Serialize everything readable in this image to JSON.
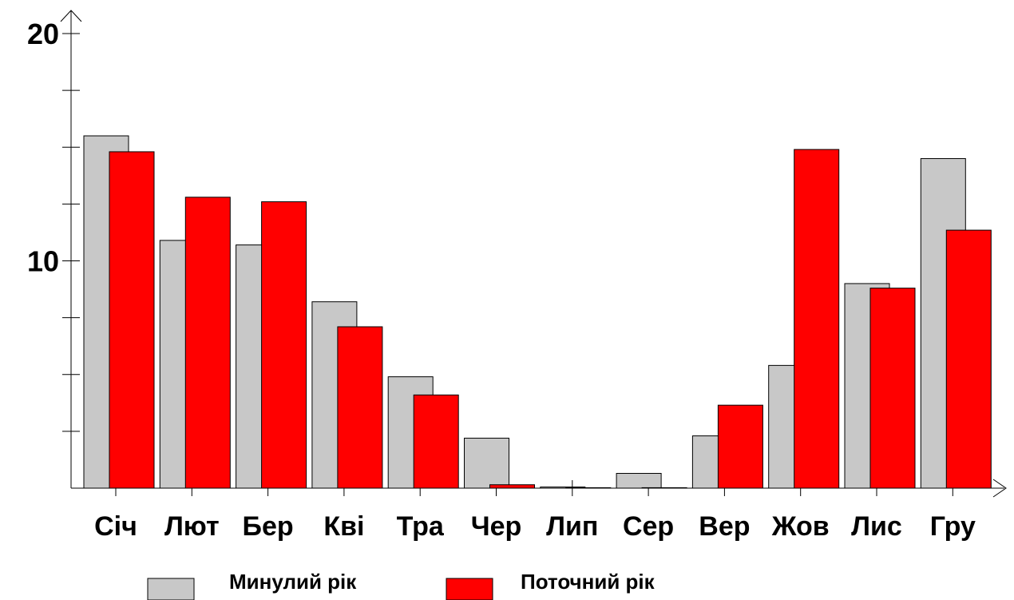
{
  "chart_data": {
    "type": "bar",
    "title": "",
    "xlabel": "",
    "ylabel": "",
    "ylim": [
      0,
      21
    ],
    "yticks_labeled": [
      10,
      20
    ],
    "yticks_minor_step": 2.5,
    "categories": [
      "Січ",
      "Лют",
      "Бер",
      "Кві",
      "Тра",
      "Чер",
      "Лип",
      "Сер",
      "Вер",
      "Жов",
      "Лис",
      "Гру"
    ],
    "series": [
      {
        "name": "Минулий рік",
        "color": "#c8c8c8",
        "values": [
          15.5,
          10.9,
          10.7,
          8.2,
          4.9,
          2.2,
          0.05,
          0.65,
          2.3,
          5.4,
          9.0,
          14.5
        ]
      },
      {
        "name": "Поточний рік",
        "color": "#ff0000",
        "values": [
          14.8,
          12.8,
          12.6,
          7.1,
          4.1,
          0.15,
          0.02,
          0.02,
          3.65,
          14.9,
          8.8,
          11.35
        ]
      }
    ],
    "legend_position": "bottom",
    "grid": false
  }
}
